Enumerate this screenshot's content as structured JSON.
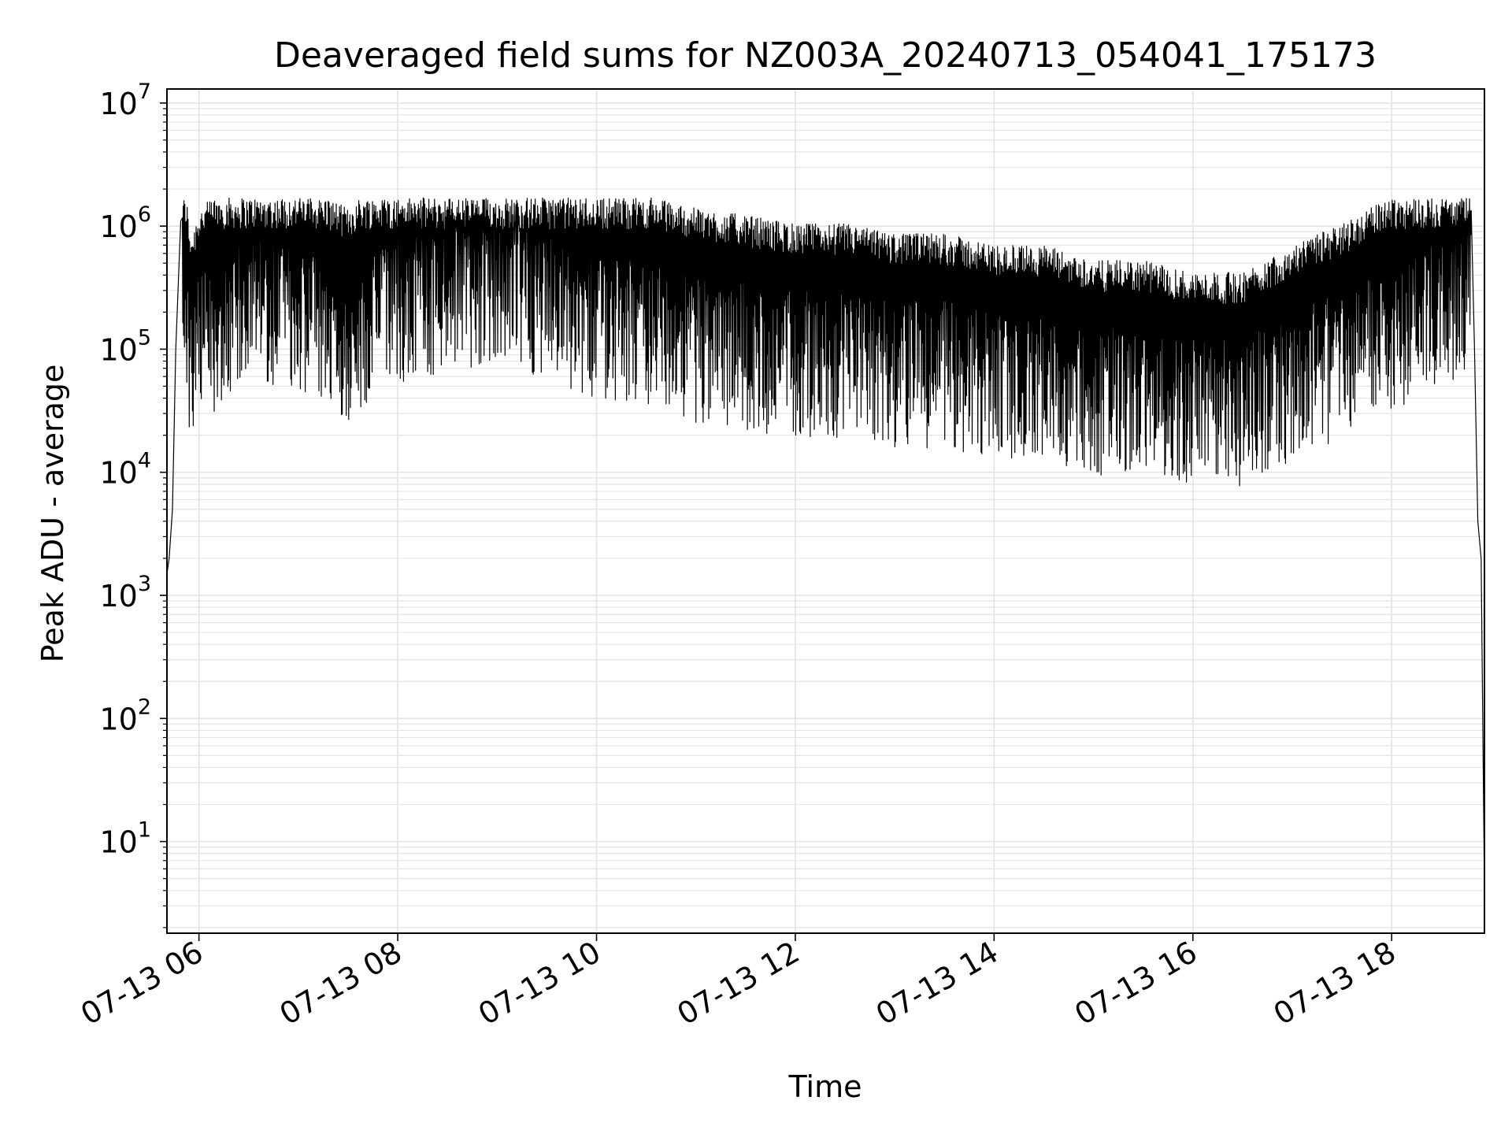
{
  "chart_data": {
    "type": "line",
    "title": "Deaveraged field sums for NZ003A_20240713_054041_175173",
    "xlabel": "Time",
    "ylabel": "Peak ADU - average",
    "yscale": "log",
    "x_range": [
      "2024-07-13 05:40:41",
      "2024-07-13 18:56:00"
    ],
    "ylim": [
      1.8,
      13000000
    ],
    "x_ticks": [
      "07-13 06",
      "07-13 08",
      "07-13 10",
      "07-13 12",
      "07-13 14",
      "07-13 16",
      "07-13 18"
    ],
    "y_ticks": [
      {
        "base": "10",
        "exp": "1"
      },
      {
        "base": "10",
        "exp": "2"
      },
      {
        "base": "10",
        "exp": "3"
      },
      {
        "base": "10",
        "exp": "4"
      },
      {
        "base": "10",
        "exp": "5"
      },
      {
        "base": "10",
        "exp": "6"
      },
      {
        "base": "10",
        "exp": "7"
      }
    ],
    "grid": true,
    "line_color": "#000000",
    "series": [
      {
        "x": [
          "2024-07-13 05:40:41",
          "2024-07-13 05:42",
          "2024-07-13 05:44",
          "2024-07-13 05:46",
          "2024-07-13 05:48",
          "2024-07-13 05:49",
          "2024-07-13 05:50",
          "2024-07-13 05:52",
          "2024-07-13 05:54",
          "2024-07-13 05:56",
          "2024-07-13 06:00",
          "2024-07-13 06:10",
          "2024-07-13 06:20",
          "2024-07-13 06:30",
          "2024-07-13 06:45",
          "2024-07-13 07:00",
          "2024-07-13 07:15",
          "2024-07-13 07:30",
          "2024-07-13 07:45",
          "2024-07-13 08:00",
          "2024-07-13 08:20",
          "2024-07-13 08:40",
          "2024-07-13 09:00",
          "2024-07-13 09:20",
          "2024-07-13 09:40",
          "2024-07-13 10:00",
          "2024-07-13 10:30",
          "2024-07-13 11:00",
          "2024-07-13 11:30",
          "2024-07-13 12:00",
          "2024-07-13 12:30",
          "2024-07-13 13:00",
          "2024-07-13 13:30",
          "2024-07-13 14:00",
          "2024-07-13 14:30",
          "2024-07-13 15:00",
          "2024-07-13 15:30",
          "2024-07-13 16:00",
          "2024-07-13 16:30",
          "2024-07-13 17:00",
          "2024-07-13 17:30",
          "2024-07-13 18:00",
          "2024-07-13 18:30",
          "2024-07-13 18:45",
          "2024-07-13 18:48",
          "2024-07-13 18:50",
          "2024-07-13 18:52",
          "2024-07-13 18:54",
          "2024-07-13 18:56"
        ],
        "y": [
          1500,
          2000,
          5000,
          100000,
          500000,
          1100000,
          1000000,
          600000,
          300000,
          250000,
          400000,
          500000,
          700000,
          900000,
          800000,
          700000,
          500000,
          400000,
          600000,
          800000,
          900000,
          1000000,
          1200000,
          1000000,
          800000,
          600000,
          500000,
          400000,
          350000,
          300000,
          300000,
          250000,
          250000,
          200000,
          200000,
          150000,
          150000,
          120000,
          120000,
          200000,
          300000,
          500000,
          800000,
          1000000,
          1200000,
          100000,
          4000,
          2000,
          4
        ]
      }
    ]
  }
}
